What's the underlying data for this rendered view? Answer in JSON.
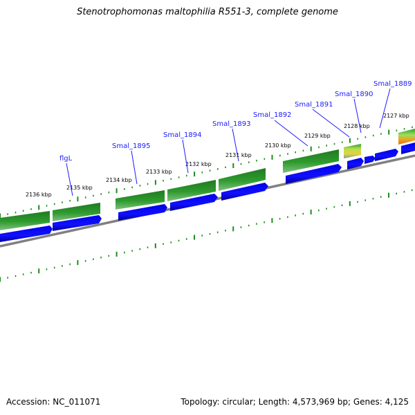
{
  "title": "Stenotrophomonas maltophilia R551-3, complete genome",
  "footer": {
    "accession": "Accession: NC_011071",
    "summary": "Topology: circular; Length: 4,573,969 bp; Genes: 4,125"
  },
  "colors": {
    "cds": "#0000e6",
    "gene": "#1f7a1f",
    "backbone": "#808080",
    "ticks": "#1a8c1a",
    "gene_label": "#1a1aff"
  },
  "ticks": [
    "2136 kbp",
    "2135 kbp",
    "2134 kbp",
    "2133 kbp",
    "2132 kbp",
    "2131 kbp",
    "2130 kbp",
    "2129 kbp",
    "2128 kbp",
    "2127 kbp"
  ],
  "genes": [
    "flgL",
    "Smal_1895",
    "Smal_1894",
    "Smal_1893",
    "Smal_1892",
    "Smal_1891",
    "Smal_1890",
    "Smal_1889"
  ]
}
